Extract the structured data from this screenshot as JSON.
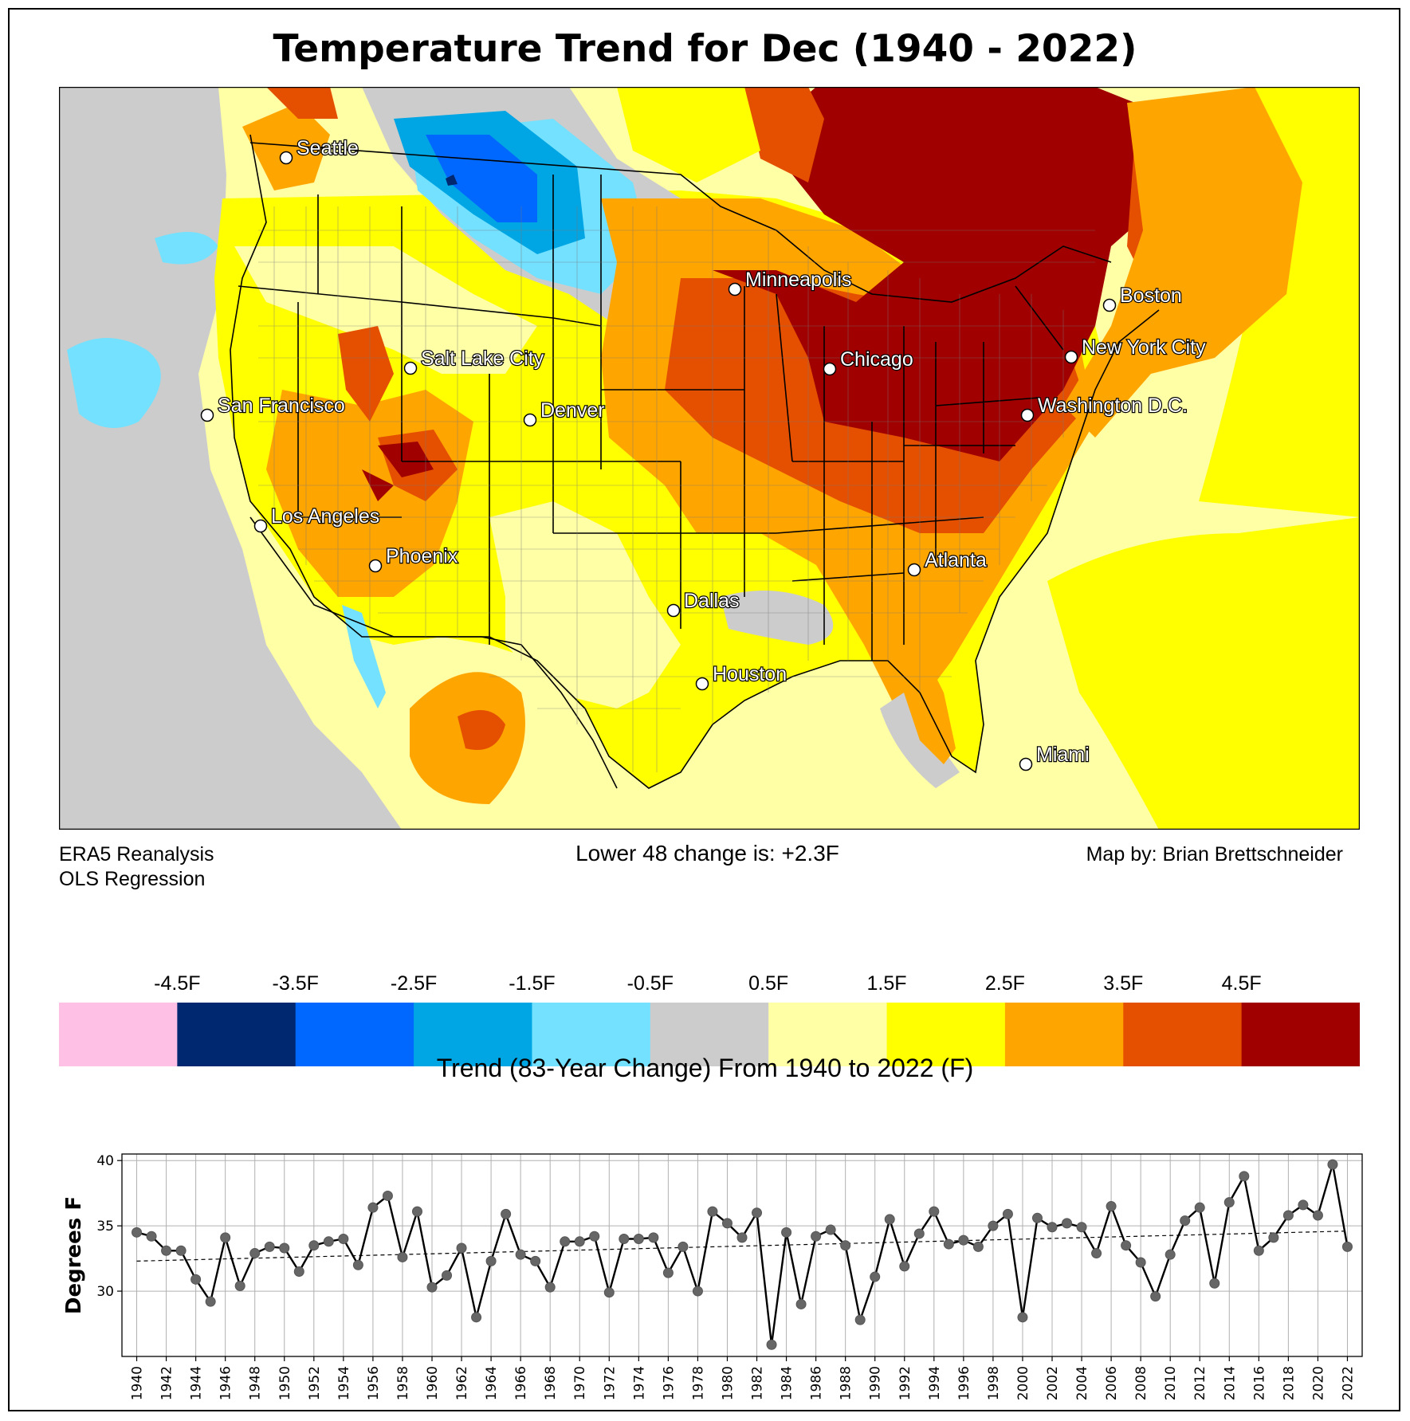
{
  "title": "Temperature Trend for Dec (1940 - 2022)",
  "notes": {
    "source_line1": "ERA5 Reanalysis",
    "source_line2": "OLS Regression",
    "summary": "Lower 48 change is: +2.3F",
    "credit": "Map by: Brian Brettschneider"
  },
  "map": {
    "cities": [
      {
        "name": "Seattle"
      },
      {
        "name": "Minneapolis"
      },
      {
        "name": "Boston"
      },
      {
        "name": "Salt Lake City"
      },
      {
        "name": "Chicago"
      },
      {
        "name": "New York City"
      },
      {
        "name": "San Francisco"
      },
      {
        "name": "Denver"
      },
      {
        "name": "Washington D.C."
      },
      {
        "name": "Los Angeles"
      },
      {
        "name": "Phoenix"
      },
      {
        "name": "Atlanta"
      },
      {
        "name": "Dallas"
      },
      {
        "name": "Houston"
      },
      {
        "name": "Miami"
      }
    ]
  },
  "colorbar": {
    "title": "Trend (83-Year Change) From 1940 to 2022 (F)",
    "bins": [
      {
        "color": "#ffc0e6"
      },
      {
        "color": "#002870",
        "label": "-4.5F"
      },
      {
        "color": "#0068ff",
        "label": "-3.5F"
      },
      {
        "color": "#00a6e4",
        "label": "-2.5F"
      },
      {
        "color": "#73e1ff",
        "label": "-1.5F"
      },
      {
        "color": "#cccccc",
        "label": "-0.5F"
      },
      {
        "color": "#ffffa6",
        "label": "0.5F"
      },
      {
        "color": "#ffff00",
        "label": "1.5F"
      },
      {
        "color": "#ffa500",
        "label": "2.5F"
      },
      {
        "color": "#e55000",
        "label": "3.5F"
      },
      {
        "color": "#a00000",
        "label": "4.5F"
      }
    ]
  },
  "chart_data": {
    "type": "line",
    "ylabel": "Degrees F",
    "xlabel": "",
    "xlim": [
      1939,
      2023
    ],
    "ylim": [
      25,
      40.5
    ],
    "yticks": [
      30,
      35,
      40
    ],
    "xticks": [
      1940,
      1942,
      1944,
      1946,
      1948,
      1950,
      1952,
      1954,
      1956,
      1958,
      1960,
      1962,
      1964,
      1966,
      1968,
      1970,
      1972,
      1974,
      1976,
      1978,
      1980,
      1982,
      1984,
      1986,
      1988,
      1990,
      1992,
      1994,
      1996,
      1998,
      2000,
      2002,
      2004,
      2006,
      2008,
      2010,
      2012,
      2014,
      2016,
      2018,
      2020,
      2022
    ],
    "grid": true,
    "series": [
      {
        "x": [
          1940,
          1941,
          1942,
          1943,
          1944,
          1945,
          1946,
          1947,
          1948,
          1949,
          1950,
          1951,
          1952,
          1953,
          1954,
          1955,
          1956,
          1957,
          1958,
          1959,
          1960,
          1961,
          1962,
          1963,
          1964,
          1965,
          1966,
          1967,
          1968,
          1969,
          1970,
          1971,
          1972,
          1973,
          1974,
          1975,
          1976,
          1977,
          1978,
          1979,
          1980,
          1981,
          1982,
          1983,
          1984,
          1985,
          1986,
          1987,
          1988,
          1989,
          1990,
          1991,
          1992,
          1993,
          1994,
          1995,
          1996,
          1997,
          1998,
          1999,
          2000,
          2001,
          2002,
          2003,
          2004,
          2005,
          2006,
          2007,
          2008,
          2009,
          2010,
          2011,
          2012,
          2013,
          2014,
          2015,
          2016,
          2017,
          2018,
          2019,
          2020,
          2021,
          2022
        ],
        "y": [
          34.5,
          34.2,
          33.1,
          33.1,
          30.9,
          29.2,
          34.1,
          30.4,
          32.9,
          33.4,
          33.3,
          31.5,
          33.5,
          33.8,
          34.0,
          32.0,
          36.4,
          37.3,
          32.6,
          36.1,
          30.3,
          31.2,
          33.3,
          28.0,
          32.3,
          35.9,
          32.8,
          32.3,
          30.3,
          33.8,
          33.8,
          34.2,
          29.9,
          34.0,
          34.0,
          34.1,
          31.4,
          33.4,
          30.0,
          36.1,
          35.2,
          34.1,
          36.0,
          25.9,
          34.5,
          29.0,
          34.2,
          34.7,
          33.5,
          27.8,
          31.1,
          35.5,
          31.9,
          34.4,
          36.1,
          33.6,
          33.9,
          33.4,
          35.0,
          35.9,
          28.0,
          35.6,
          34.9,
          35.2,
          34.9,
          32.9,
          36.5,
          33.5,
          32.2,
          29.6,
          32.8,
          35.4,
          36.4,
          30.6,
          36.8,
          38.8,
          33.1,
          34.1,
          35.8,
          36.6,
          35.8,
          39.7,
          33.4
        ]
      }
    ],
    "trendline": {
      "style": "dashed",
      "start": [
        1940,
        32.3
      ],
      "end": [
        2022,
        34.6
      ]
    }
  }
}
